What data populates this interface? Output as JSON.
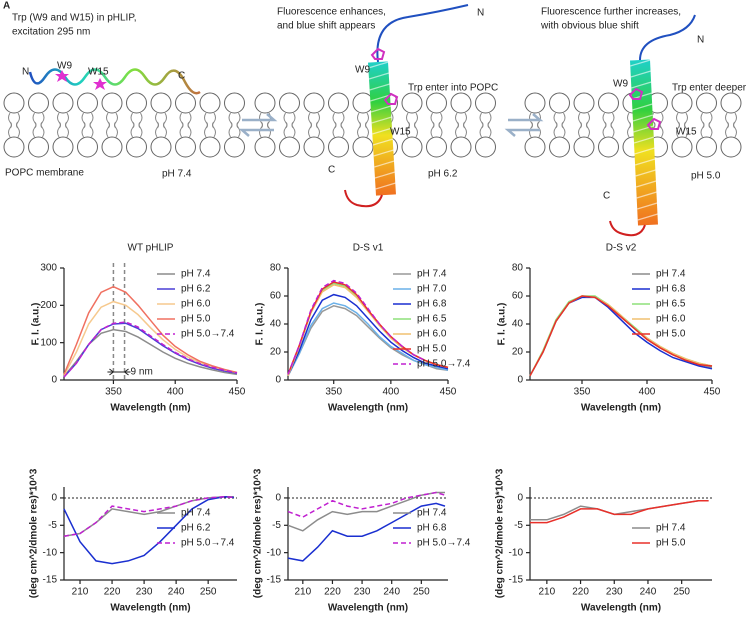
{
  "panel_label": "A",
  "schematic": [
    {
      "caption": [
        "Trp (W9 and W15) in pHLIP,",
        "excitation 295 nm"
      ],
      "labels": [
        "N",
        "W9",
        "W15",
        "C",
        "POPC membrane",
        "pH 7.4"
      ]
    },
    {
      "caption": [
        "Fluorescence enhances,",
        "and blue shift appears"
      ],
      "labels": [
        "N",
        "W9",
        "W15",
        "Trp enter into POPC",
        "C",
        "pH 6.2"
      ]
    },
    {
      "caption": [
        "Fluorescence further increases,",
        "with obvious blue shift"
      ],
      "labels": [
        "N",
        "W9",
        "Trp enter deeper",
        "W15",
        "C",
        "pH 5.0"
      ]
    }
  ],
  "chart_data": [
    {
      "type": "line",
      "title": "WT pHLIP",
      "xlabel": "Wavelength (nm)",
      "ylabel": "F. I. (a.u.)",
      "legend": "upper right",
      "xlim": [
        310,
        450
      ],
      "xticks": [
        350,
        400,
        450
      ],
      "ylim": [
        0,
        300
      ],
      "yticks": [
        0,
        100,
        200,
        300
      ],
      "x": [
        310,
        320,
        330,
        340,
        350,
        360,
        370,
        380,
        390,
        400,
        410,
        420,
        430,
        440,
        450
      ],
      "series": [
        {
          "name": "pH 7.4",
          "color": "#8c8c8c",
          "values": [
            10,
            50,
            95,
            125,
            135,
            130,
            115,
            95,
            75,
            58,
            45,
            35,
            27,
            20,
            15
          ]
        },
        {
          "name": "pH 6.2",
          "color": "#4a3fd6",
          "values": [
            8,
            45,
            95,
            135,
            150,
            152,
            138,
            115,
            92,
            72,
            55,
            42,
            32,
            24,
            18
          ]
        },
        {
          "name": "pH 6.0",
          "color": "#f6c98e",
          "values": [
            12,
            75,
            150,
            195,
            210,
            200,
            175,
            140,
            108,
            82,
            62,
            47,
            36,
            27,
            20
          ]
        },
        {
          "name": "pH 5.0",
          "color": "#f07060",
          "values": [
            15,
            95,
            180,
            235,
            250,
            235,
            200,
            160,
            120,
            90,
            68,
            50,
            38,
            28,
            20
          ]
        },
        {
          "name": "pH 5.0→7.4",
          "color": "#c020d0",
          "style": "dashed",
          "values": [
            8,
            45,
            95,
            135,
            152,
            155,
            142,
            118,
            95,
            74,
            57,
            44,
            34,
            26,
            19
          ]
        }
      ],
      "annotation": {
        "text": "9 nm",
        "x": [
          350,
          359
        ]
      }
    },
    {
      "type": "line",
      "title": "D-S v1",
      "xlabel": "Wavelength (nm)",
      "ylabel": "F. I. (a.u.)",
      "legend": "upper right",
      "xlim": [
        310,
        450
      ],
      "xticks": [
        350,
        400,
        450
      ],
      "ylim": [
        0,
        80
      ],
      "yticks": [
        0,
        20,
        40,
        60,
        80
      ],
      "x": [
        310,
        320,
        330,
        340,
        350,
        360,
        370,
        380,
        390,
        400,
        410,
        420,
        430,
        440,
        450
      ],
      "series": [
        {
          "name": "pH 7.4",
          "color": "#999999",
          "values": [
            3,
            19,
            37,
            49,
            53,
            51,
            46,
            38,
            30,
            23,
            18,
            14,
            11,
            8,
            7
          ]
        },
        {
          "name": "pH 7.0",
          "color": "#6ab0e8",
          "values": [
            3,
            19,
            39,
            51,
            55,
            53,
            48,
            40,
            31,
            24,
            19,
            14,
            11,
            9,
            7
          ]
        },
        {
          "name": "pH 6.8",
          "color": "#1a2fd0",
          "values": [
            3,
            21,
            43,
            57,
            61,
            59,
            53,
            44,
            35,
            27,
            21,
            16,
            12,
            10,
            8
          ]
        },
        {
          "name": "pH 6.5",
          "color": "#8ee07a",
          "values": [
            3,
            24,
            48,
            64,
            69,
            67,
            60,
            50,
            39,
            30,
            23,
            18,
            14,
            11,
            9
          ]
        },
        {
          "name": "pH 6.0",
          "color": "#f0c070",
          "values": [
            3,
            24,
            48,
            63,
            68,
            66,
            59,
            49,
            39,
            30,
            23,
            18,
            14,
            11,
            9
          ]
        },
        {
          "name": "pH 5.0",
          "color": "#e8302a",
          "values": [
            4,
            25,
            49,
            65,
            70,
            68,
            61,
            50,
            40,
            31,
            24,
            18,
            14,
            11,
            9
          ]
        },
        {
          "name": "pH 5.0→7.4",
          "color": "#c020d0",
          "style": "dashed",
          "values": [
            4,
            25,
            50,
            66,
            71,
            69,
            62,
            51,
            40,
            31,
            24,
            18,
            14,
            null,
            null
          ]
        }
      ]
    },
    {
      "type": "line",
      "title": "D-S v2",
      "xlabel": "Wavelength (nm)",
      "ylabel": "F. I. (a.u.)",
      "legend": "upper right",
      "xlim": [
        310,
        450
      ],
      "xticks": [
        350,
        400,
        450
      ],
      "ylim": [
        0,
        80
      ],
      "yticks": [
        0,
        20,
        40,
        60,
        80
      ],
      "x": [
        310,
        320,
        330,
        340,
        350,
        360,
        370,
        380,
        390,
        400,
        410,
        420,
        430,
        440,
        450
      ],
      "series": [
        {
          "name": "pH 7.4",
          "color": "#8c8c8c",
          "values": [
            3,
            20,
            42,
            55,
            60,
            59,
            53,
            45,
            37,
            29,
            23,
            18,
            14,
            11,
            9
          ]
        },
        {
          "name": "pH 6.8",
          "color": "#1a2fd0",
          "values": [
            3,
            20,
            42,
            55,
            59,
            59,
            52,
            43,
            34,
            27,
            21,
            16,
            13,
            10,
            8
          ]
        },
        {
          "name": "pH 6.5",
          "color": "#8ee07a",
          "values": [
            3,
            21,
            43,
            56,
            60,
            60,
            54,
            46,
            38,
            30,
            24,
            19,
            15,
            12,
            10
          ]
        },
        {
          "name": "pH 6.0",
          "color": "#f0c070",
          "values": [
            3,
            20,
            42,
            55,
            60,
            59,
            54,
            46,
            37,
            30,
            24,
            19,
            15,
            12,
            10
          ]
        },
        {
          "name": "pH 5.0",
          "color": "#e8302a",
          "values": [
            3,
            20,
            42,
            55,
            60,
            59,
            53,
            45,
            37,
            29,
            23,
            18,
            14,
            11,
            10
          ]
        }
      ]
    },
    {
      "type": "line",
      "xlabel": "Wavelength (nm)",
      "ylabel": "(deg cm^2/dmole res)*10^3",
      "legend": "lower right",
      "zero_line": true,
      "xlim": [
        205,
        259
      ],
      "xticks": [
        210,
        220,
        230,
        240,
        250
      ],
      "ylim": [
        -15,
        2
      ],
      "yticks": [
        -15,
        -10,
        -5,
        0
      ],
      "x": [
        205,
        210,
        215,
        220,
        225,
        230,
        235,
        240,
        245,
        250,
        255,
        258
      ],
      "series": [
        {
          "name": "pH 7.4",
          "color": "#8c8c8c",
          "values": [
            -7,
            -6.5,
            -4.5,
            -2,
            -2.5,
            -3,
            -2.5,
            -1.5,
            -0.5,
            0,
            0.2,
            0.2
          ]
        },
        {
          "name": "pH 6.2",
          "color": "#1a2fd0",
          "values": [
            -2,
            -8,
            -11.5,
            -12,
            -11.5,
            -10.5,
            -8,
            -5,
            -2,
            -0.3,
            0.2,
            0.1
          ]
        },
        {
          "name": "pH 5.0→7.4",
          "color": "#c020d0",
          "style": "dashed",
          "values": [
            -7,
            -6.5,
            -4.5,
            -1.5,
            -2,
            -2.5,
            -2,
            -1.5,
            -0.5,
            0,
            0.2,
            0.1
          ]
        }
      ]
    },
    {
      "type": "line",
      "xlabel": "Wavelength (nm)",
      "ylabel": "(deg cm^2/dmole res)*10^3",
      "legend": "lower right",
      "zero_line": true,
      "xlim": [
        205,
        259
      ],
      "xticks": [
        210,
        220,
        230,
        240,
        250
      ],
      "ylim": [
        -15,
        2
      ],
      "yticks": [
        -15,
        -10,
        -5,
        0
      ],
      "x": [
        205,
        210,
        215,
        220,
        225,
        230,
        235,
        240,
        245,
        250,
        255,
        258
      ],
      "series": [
        {
          "name": "pH 7.4",
          "color": "#8c8c8c",
          "values": [
            -5,
            -6,
            -4,
            -2.5,
            -3,
            -2.5,
            -2.5,
            -1.5,
            -0.5,
            0.5,
            1,
            1
          ]
        },
        {
          "name": "pH 6.8",
          "color": "#1a2fd0",
          "values": [
            -11,
            -11.5,
            -9,
            -6,
            -7,
            -7,
            -6,
            -4.5,
            -3,
            -1.5,
            -1,
            -1.5
          ]
        },
        {
          "name": "pH 5.0→7.4",
          "color": "#c020d0",
          "style": "dashed",
          "values": [
            -2.5,
            -3.5,
            -2,
            -0.5,
            -1.5,
            -2,
            -1.5,
            -1,
            0,
            0.5,
            1,
            0.5
          ]
        }
      ]
    },
    {
      "type": "line",
      "xlabel": "Wavelength (nm)",
      "ylabel": "(deg cm^2/dmole res)*10^3",
      "legend": "lower right",
      "zero_line": true,
      "xlim": [
        205,
        259
      ],
      "xticks": [
        210,
        220,
        230,
        240,
        250
      ],
      "ylim": [
        -15,
        2
      ],
      "yticks": [
        -15,
        -10,
        -5,
        0
      ],
      "x": [
        205,
        210,
        215,
        220,
        225,
        230,
        235,
        240,
        245,
        250,
        255,
        258
      ],
      "series": [
        {
          "name": "pH 7.4",
          "color": "#8c8c8c",
          "values": [
            -4,
            -4,
            -3,
            -1.5,
            -2,
            -3,
            -2.5,
            -2,
            -1.5,
            -1,
            -0.5,
            -0.5
          ]
        },
        {
          "name": "pH 5.0",
          "color": "#e8302a",
          "values": [
            -4.5,
            -4.5,
            -3.5,
            -2,
            -2,
            -3,
            -3,
            -2,
            -1.5,
            -1,
            -0.5,
            -0.5
          ]
        }
      ]
    }
  ]
}
